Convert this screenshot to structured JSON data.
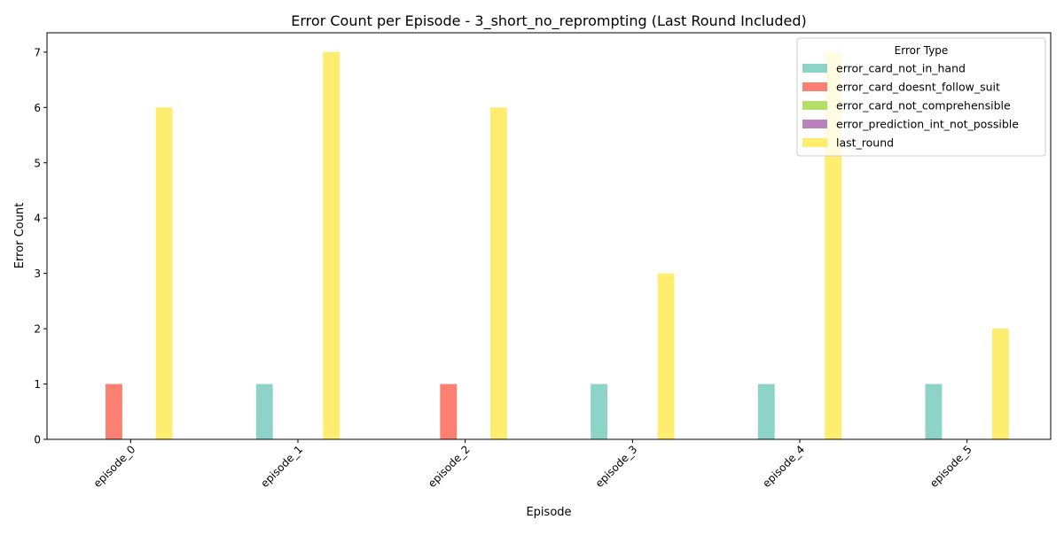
{
  "chart_data": {
    "type": "bar",
    "title": "Error Count per Episode - 3_short_no_reprompting (Last Round Included)",
    "xlabel": "Episode",
    "ylabel": "Error Count",
    "categories": [
      "episode_0",
      "episode_1",
      "episode_2",
      "episode_3",
      "episode_4",
      "episode_5"
    ],
    "ylim": [
      0,
      7.35
    ],
    "yticks": [
      0,
      1,
      2,
      3,
      4,
      5,
      6,
      7
    ],
    "grid": false,
    "legend": {
      "title": "Error Type",
      "placement": "top-right"
    },
    "series": [
      {
        "name": "error_card_not_in_hand",
        "color": "#8dd3c7",
        "values": [
          0,
          1,
          0,
          1,
          1,
          1
        ]
      },
      {
        "name": "error_card_doesnt_follow_suit",
        "color": "#fb8072",
        "values": [
          1,
          0,
          1,
          0,
          0,
          0
        ]
      },
      {
        "name": "error_card_not_comprehensible",
        "color": "#b3de69",
        "values": [
          0,
          0,
          0,
          0,
          0,
          0
        ]
      },
      {
        "name": "error_prediction_int_not_possible",
        "color": "#bc80bd",
        "values": [
          0,
          0,
          0,
          0,
          0,
          0
        ]
      },
      {
        "name": "last_round",
        "color": "#ffed6f",
        "values": [
          6,
          7,
          6,
          3,
          7,
          2
        ]
      }
    ]
  }
}
